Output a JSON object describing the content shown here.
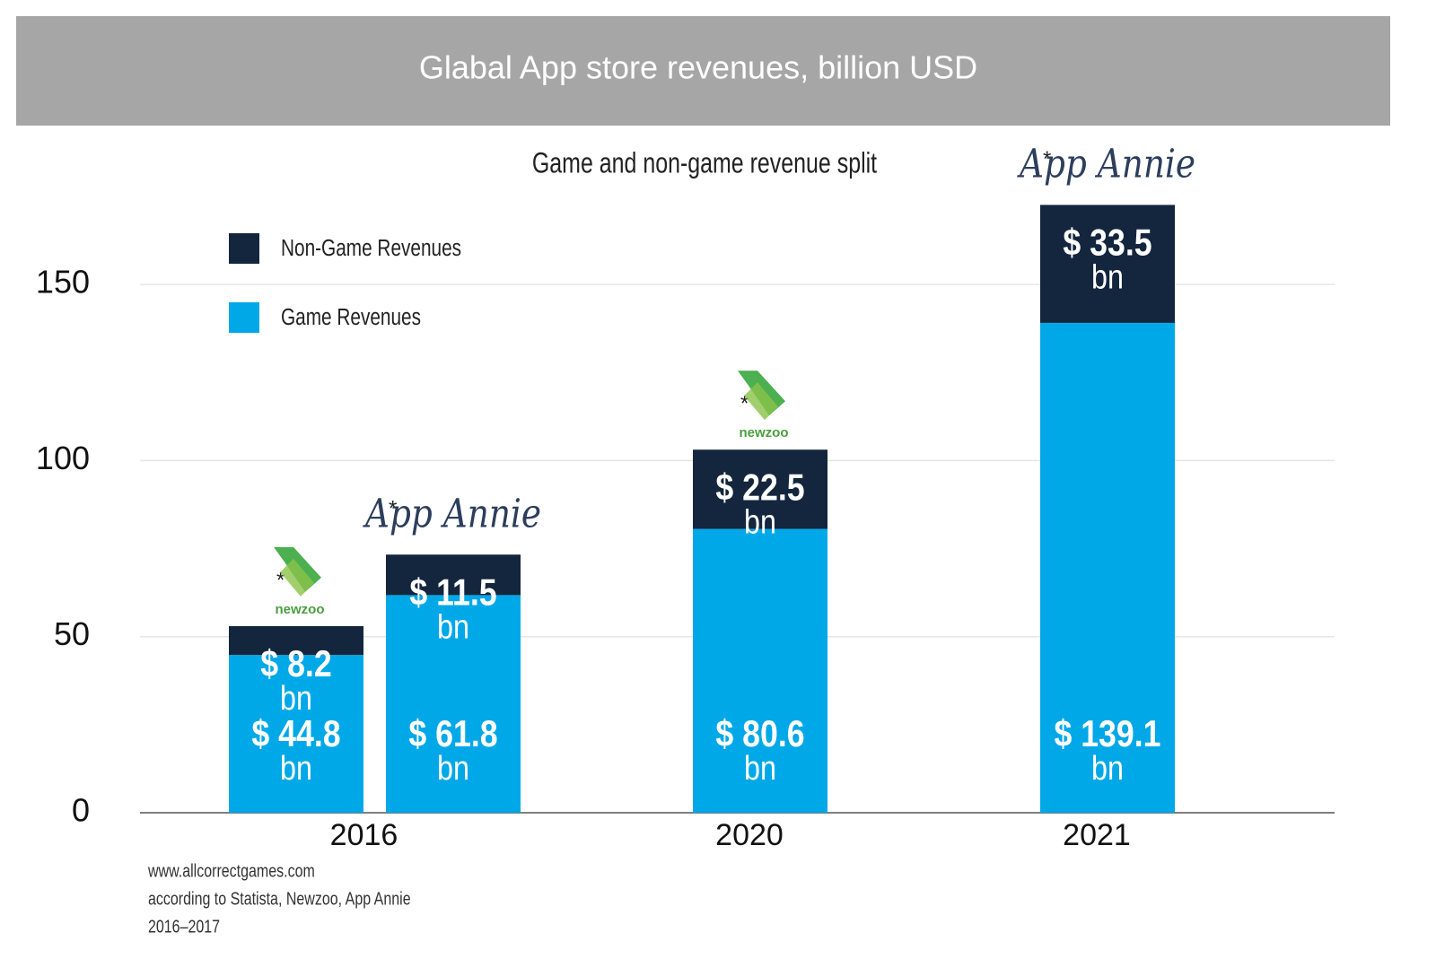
{
  "chart_data": {
    "type": "stacked-bar",
    "title": "Glabal App store revenues, billion USD",
    "subtitle": "Game and non-game revenue split",
    "categories": [
      "2016",
      null,
      "2020",
      "2021"
    ],
    "series": [
      {
        "name": "Game Revenues",
        "color": "#00a8e8",
        "values": [
          44.8,
          61.8,
          80.6,
          139.1
        ],
        "value_labels": [
          "$ 44.8",
          "$ 61.8",
          "$ 80.6",
          "$ 139.1"
        ]
      },
      {
        "name": "Non-Game Revenues",
        "color": "#13263d",
        "values": [
          8.2,
          11.5,
          22.5,
          33.5
        ],
        "value_labels": [
          "$ 8.2",
          "$ 11.5",
          "$ 22.5",
          "$ 33.5"
        ]
      }
    ],
    "value_unit": "bn",
    "source_marker": "*",
    "sources": [
      "newzoo",
      "App Annie",
      "newzoo",
      "App Annie"
    ],
    "ylim": [
      0,
      175
    ],
    "yticks": [
      0,
      50,
      100,
      150
    ],
    "grid": true,
    "footer": [
      "www.allcorrectgames.com",
      "according to Statista, Newzoo, App Annie",
      "2016–2017"
    ]
  }
}
